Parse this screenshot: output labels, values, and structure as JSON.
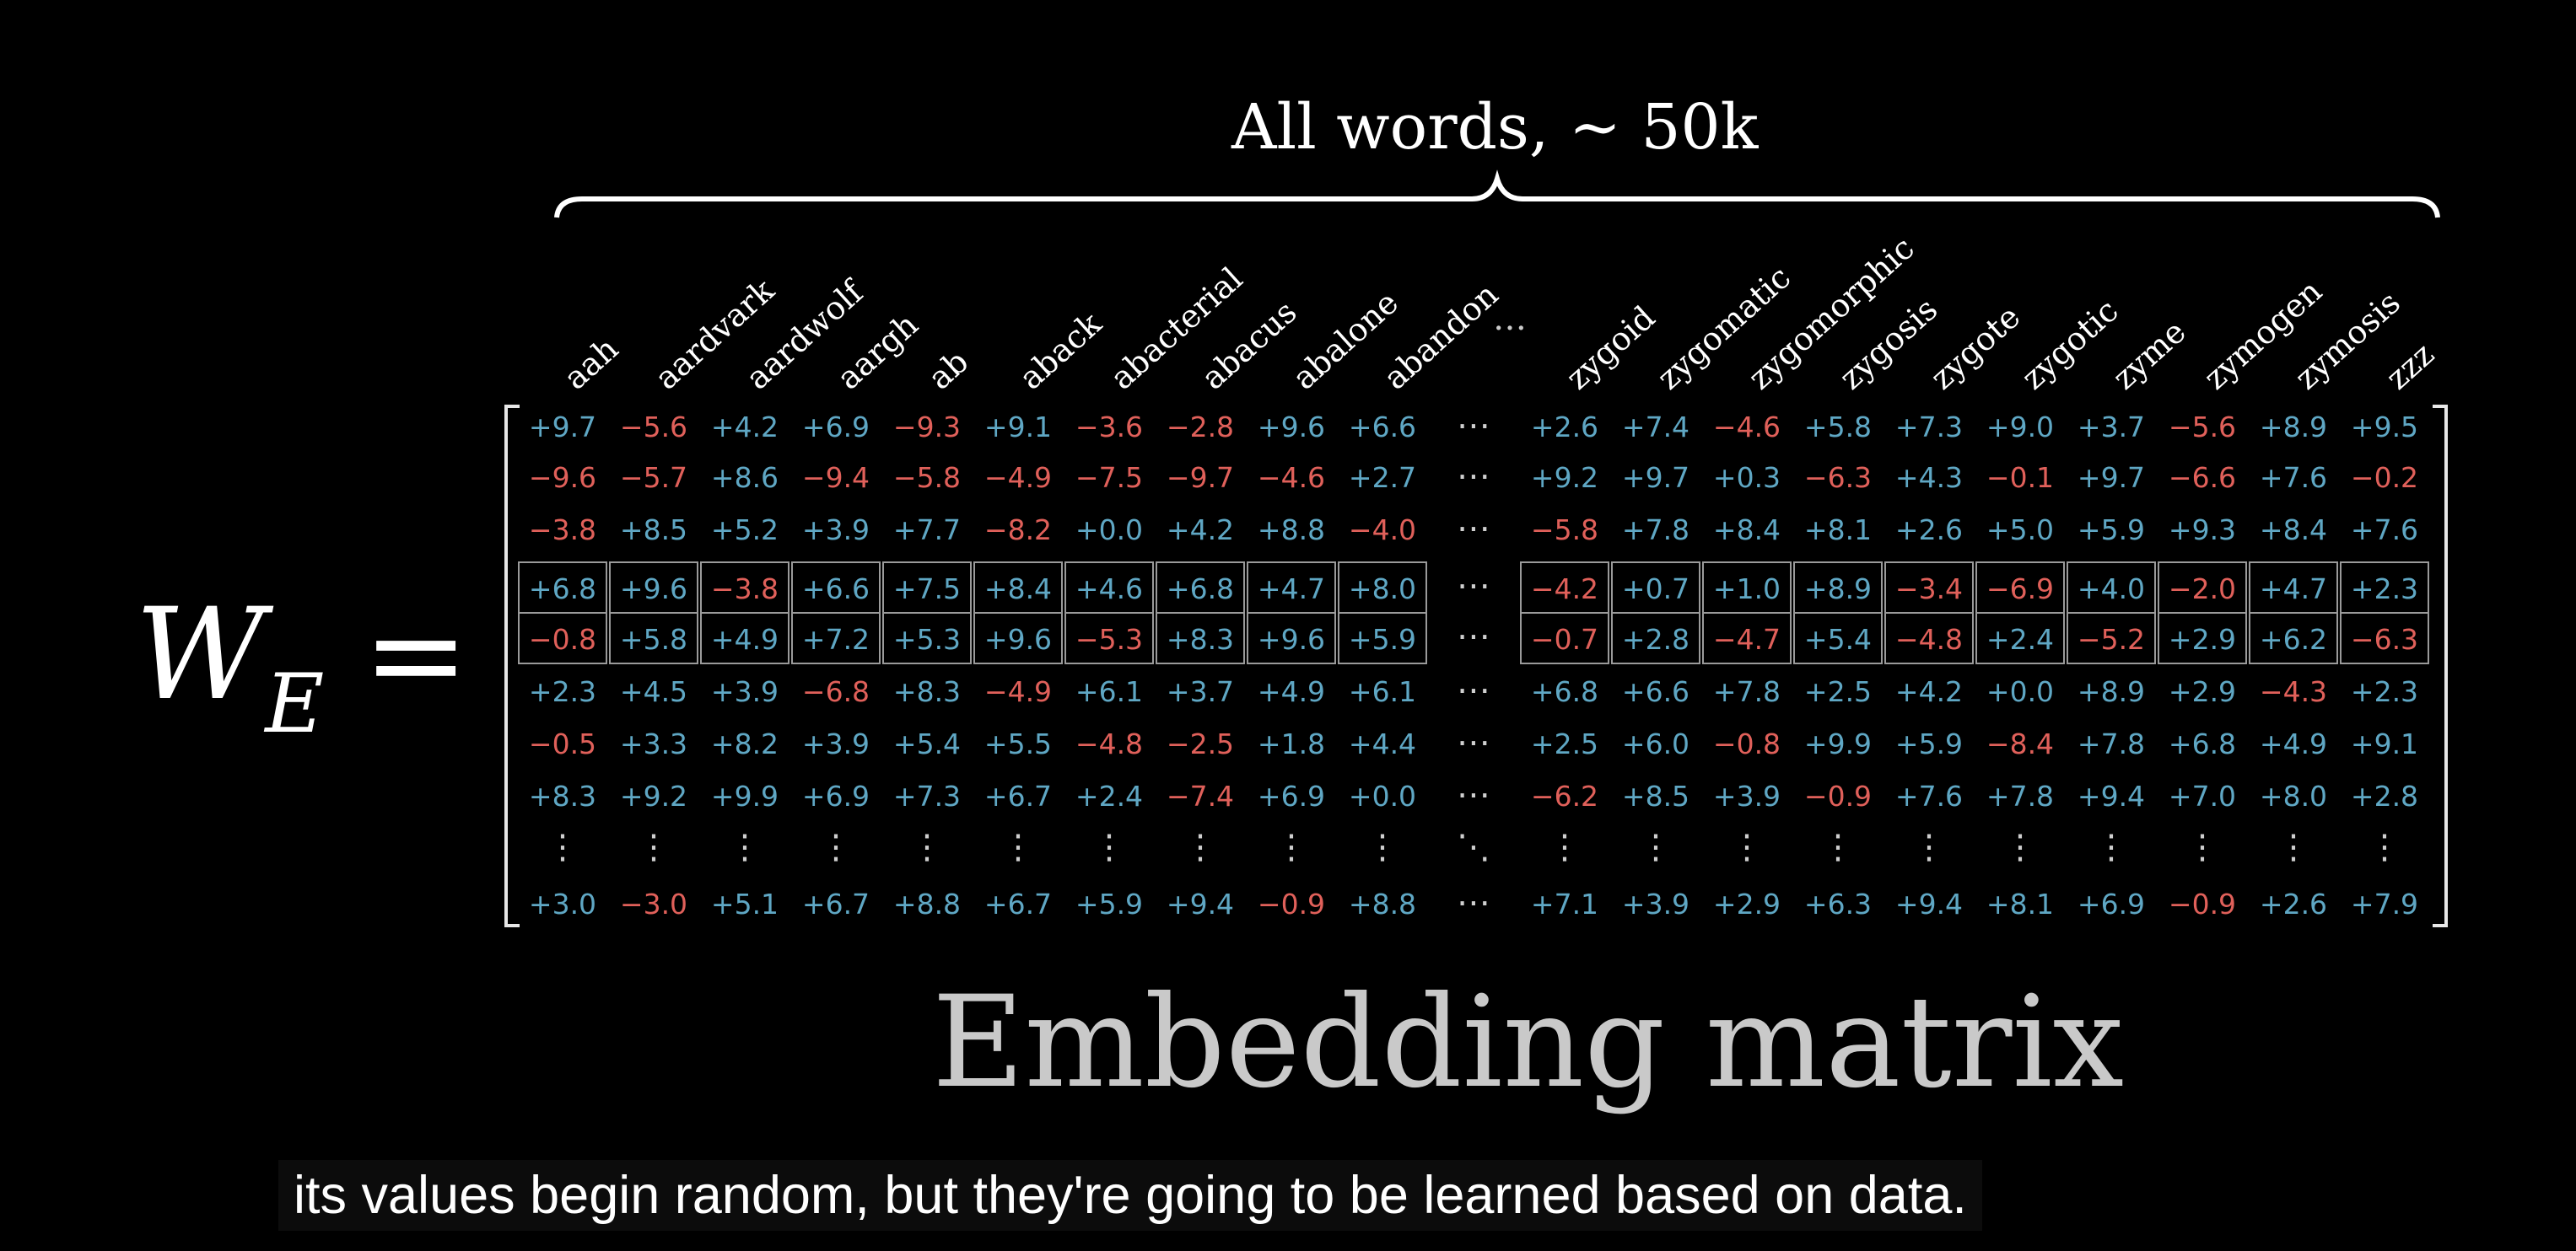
{
  "brace_label": "All words,  ∼ 50k",
  "equation": {
    "symbol": "W",
    "subscript": "E",
    "equals": "="
  },
  "columns": [
    "aah",
    "aardvark",
    "aardwolf",
    "aargh",
    "ab",
    "aback",
    "abacterial",
    "abacus",
    "abalone",
    "abandon",
    "…",
    "zygoid",
    "zygomatic",
    "zygomorphic",
    "zygosis",
    "zygote",
    "zygotic",
    "zyme",
    "zymogen",
    "zymosis",
    "zzz"
  ],
  "matrix_rows": [
    [
      "+9.7",
      "−5.6",
      "+4.2",
      "+6.9",
      "−9.3",
      "+9.1",
      "−3.6",
      "−2.8",
      "+9.6",
      "+6.6",
      "⋯",
      "+2.6",
      "+7.4",
      "−4.6",
      "+5.8",
      "+7.3",
      "+9.0",
      "+3.7",
      "−5.6",
      "+8.9",
      "+9.5"
    ],
    [
      "−9.6",
      "−5.7",
      "+8.6",
      "−9.4",
      "−5.8",
      "−4.9",
      "−7.5",
      "−9.7",
      "−4.6",
      "+2.7",
      "⋯",
      "+9.2",
      "+9.7",
      "+0.3",
      "−6.3",
      "+4.3",
      "−0.1",
      "+9.7",
      "−6.6",
      "+7.6",
      "−0.2"
    ],
    [
      "−3.8",
      "+8.5",
      "+5.2",
      "+3.9",
      "+7.7",
      "−8.2",
      "+0.0",
      "+4.2",
      "+8.8",
      "−4.0",
      "⋯",
      "−5.8",
      "+7.8",
      "+8.4",
      "+8.1",
      "+2.6",
      "+5.0",
      "+5.9",
      "+9.3",
      "+8.4",
      "+7.6"
    ],
    [
      "+6.8",
      "+9.6",
      "−3.8",
      "+6.6",
      "+7.5",
      "+8.4",
      "+4.6",
      "+6.8",
      "+4.7",
      "+8.0",
      "⋯",
      "−4.2",
      "+0.7",
      "+1.0",
      "+8.9",
      "−3.4",
      "−6.9",
      "+4.0",
      "−2.0",
      "+4.7",
      "+2.3"
    ],
    [
      "−0.8",
      "+5.8",
      "+4.9",
      "+7.2",
      "+5.3",
      "+9.6",
      "−5.3",
      "+8.3",
      "+9.6",
      "+5.9",
      "⋯",
      "−0.7",
      "+2.8",
      "−4.7",
      "+5.4",
      "−4.8",
      "+2.4",
      "−5.2",
      "+2.9",
      "+6.2",
      "−6.3"
    ],
    [
      "+2.3",
      "+4.5",
      "+3.9",
      "−6.8",
      "+8.3",
      "−4.9",
      "+6.1",
      "+3.7",
      "+4.9",
      "+6.1",
      "⋯",
      "+6.8",
      "+6.6",
      "+7.8",
      "+2.5",
      "+4.2",
      "+0.0",
      "+8.9",
      "+2.9",
      "−4.3",
      "+2.3"
    ],
    [
      "−0.5",
      "+3.3",
      "+8.2",
      "+3.9",
      "+5.4",
      "+5.5",
      "−4.8",
      "−2.5",
      "+1.8",
      "+4.4",
      "⋯",
      "+2.5",
      "+6.0",
      "−0.8",
      "+9.9",
      "+5.9",
      "−8.4",
      "+7.8",
      "+6.8",
      "+4.9",
      "+9.1"
    ],
    [
      "+8.3",
      "+9.2",
      "+9.9",
      "+6.9",
      "+7.3",
      "+6.7",
      "+2.4",
      "−7.4",
      "+6.9",
      "+0.0",
      "⋯",
      "−6.2",
      "+8.5",
      "+3.9",
      "−0.9",
      "+7.6",
      "+7.8",
      "+9.4",
      "+7.0",
      "+8.0",
      "+2.8"
    ],
    [
      "⋮",
      "⋮",
      "⋮",
      "⋮",
      "⋮",
      "⋮",
      "⋮",
      "⋮",
      "⋮",
      "⋮",
      "⋱",
      "⋮",
      "⋮",
      "⋮",
      "⋮",
      "⋮",
      "⋮",
      "⋮",
      "⋮",
      "⋮",
      "⋮"
    ],
    [
      "+3.0",
      "−3.0",
      "+5.1",
      "+6.7",
      "+8.8",
      "+6.7",
      "+5.9",
      "+9.4",
      "−0.9",
      "+8.8",
      "⋯",
      "+7.1",
      "+3.9",
      "+2.9",
      "+6.3",
      "+9.4",
      "+8.1",
      "+6.9",
      "−0.9",
      "+2.6",
      "+7.9"
    ]
  ],
  "title": "Embedding matrix",
  "caption": "its values begin random, but they're going to be learned based on data.",
  "colors": {
    "positive": "#5fa7c4",
    "negative": "#e0605a",
    "background": "#000000",
    "title": "#c9c9c9"
  }
}
